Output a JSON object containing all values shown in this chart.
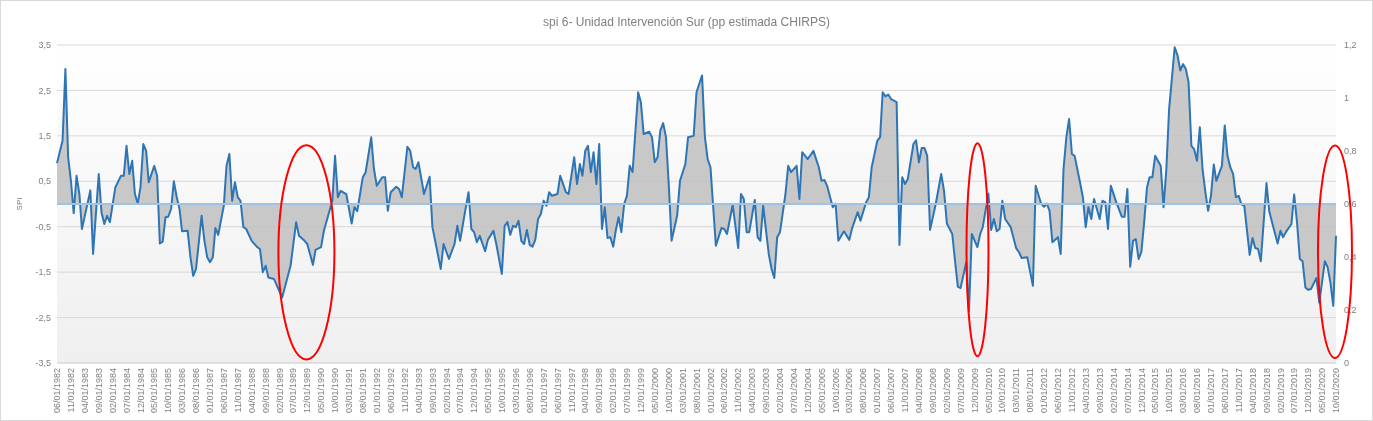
{
  "chart_data": {
    "type": "area",
    "title": "spi 6- Unidad Intervención Sur (pp estimada CHIRPS)",
    "ylabel": "SPI",
    "x": [
      "1982-06",
      "1982-08",
      "1982-09",
      "1982-10",
      "1982-11",
      "1982-12",
      "1983-01",
      "1983-02",
      "1983-03",
      "1983-06",
      "1983-07",
      "1983-09",
      "1983-10",
      "1983-11",
      "1983-12",
      "1984-01",
      "1984-03",
      "1984-05",
      "1984-06",
      "1984-07",
      "1984-08",
      "1984-09",
      "1984-10",
      "1984-11",
      "1984-12",
      "1985-01",
      "1985-02",
      "1985-03",
      "1985-05",
      "1985-06",
      "1985-07",
      "1985-08",
      "1985-09",
      "1985-10",
      "1985-11",
      "1985-12",
      "1986-01",
      "1986-02",
      "1986-03",
      "1986-05",
      "1986-06",
      "1986-07",
      "1986-08",
      "1986-10",
      "1986-11",
      "1986-12",
      "1987-01",
      "1987-02",
      "1987-03",
      "1987-04",
      "1987-06",
      "1987-07",
      "1987-08",
      "1987-09",
      "1987-10",
      "1987-11",
      "1987-12",
      "1988-01",
      "1988-02",
      "1988-04",
      "1988-06",
      "1988-07",
      "1988-08",
      "1988-09",
      "1988-10",
      "1988-12",
      "1989-03",
      "1989-06",
      "1989-08",
      "1989-09",
      "1989-11",
      "1989-12",
      "1990-02",
      "1990-03",
      "1990-05",
      "1990-06",
      "1990-09",
      "1990-10",
      "1990-11",
      "1990-12",
      "1991-02",
      "1991-04",
      "1991-05",
      "1991-06",
      "1991-08",
      "1991-09",
      "1991-11",
      "1991-12",
      "1992-01",
      "1992-03",
      "1992-04",
      "1992-05",
      "1992-06",
      "1992-08",
      "1992-09",
      "1992-10",
      "1992-12",
      "1993-01",
      "1993-02",
      "1993-03",
      "1993-04",
      "1993-06",
      "1993-08",
      "1993-09",
      "1993-10",
      "1993-12",
      "1994-01",
      "1994-03",
      "1994-05",
      "1994-06",
      "1994-07",
      "1994-08",
      "1994-10",
      "1994-11",
      "1994-12",
      "1995-01",
      "1995-02",
      "1995-04",
      "1995-05",
      "1995-07",
      "1995-08",
      "1995-10",
      "1995-11",
      "1995-12",
      "1996-01",
      "1996-02",
      "1996-03",
      "1996-04",
      "1996-05",
      "1996-06",
      "1996-07",
      "1996-08",
      "1996-09",
      "1996-10",
      "1996-11",
      "1996-12",
      "1997-01",
      "1997-02",
      "1997-03",
      "1997-04",
      "1997-06",
      "1997-07",
      "1997-09",
      "1997-10",
      "1997-12",
      "1998-01",
      "1998-02",
      "1998-03",
      "1998-04",
      "1998-05",
      "1998-06",
      "1998-07",
      "1998-08",
      "1998-09",
      "1998-10",
      "1998-11",
      "1998-12",
      "1999-01",
      "1999-02",
      "1999-03",
      "1999-04",
      "1999-05",
      "1999-06",
      "1999-07",
      "1999-08",
      "1999-09",
      "1999-11",
      "1999-12",
      "2000-01",
      "2000-03",
      "2000-04",
      "2000-05",
      "2000-06",
      "2000-07",
      "2000-08",
      "2000-09",
      "2000-10",
      "2000-11",
      "2001-01",
      "2001-02",
      "2001-04",
      "2001-05",
      "2001-07",
      "2001-08",
      "2001-10",
      "2001-11",
      "2001-12",
      "2002-01",
      "2002-03",
      "2002-05",
      "2002-06",
      "2002-07",
      "2002-09",
      "2002-11",
      "2002-12",
      "2003-01",
      "2003-02",
      "2003-03",
      "2003-05",
      "2003-06",
      "2003-07",
      "2003-08",
      "2003-10",
      "2003-11",
      "2003-12",
      "2004-01",
      "2004-02",
      "2004-04",
      "2004-05",
      "2004-06",
      "2004-08",
      "2004-09",
      "2004-10",
      "2004-12",
      "2005-02",
      "2005-04",
      "2005-05",
      "2005-06",
      "2005-07",
      "2005-09",
      "2005-10",
      "2005-11",
      "2006-01",
      "2006-03",
      "2006-04",
      "2006-06",
      "2006-07",
      "2006-09",
      "2006-10",
      "2006-11",
      "2007-01",
      "2007-02",
      "2007-03",
      "2007-04",
      "2007-05",
      "2007-06",
      "2007-08",
      "2007-09",
      "2007-10",
      "2007-11",
      "2007-12",
      "2008-02",
      "2008-03",
      "2008-04",
      "2008-05",
      "2008-06",
      "2008-07",
      "2008-08",
      "2008-10",
      "2008-12",
      "2009-01",
      "2009-02",
      "2009-04",
      "2009-05",
      "2009-06",
      "2009-07",
      "2009-09",
      "2009-10",
      "2009-11",
      "2010-01",
      "2010-02",
      "2010-03",
      "2010-05",
      "2010-06",
      "2010-07",
      "2010-08",
      "2010-09",
      "2010-10",
      "2010-11",
      "2011-01",
      "2011-03",
      "2011-04",
      "2011-05",
      "2011-07",
      "2011-09",
      "2011-10",
      "2011-12",
      "2012-01",
      "2012-02",
      "2012-03",
      "2012-04",
      "2012-06",
      "2012-07",
      "2012-08",
      "2012-09",
      "2012-10",
      "2012-11",
      "2012-12",
      "2013-02",
      "2013-03",
      "2013-04",
      "2013-05",
      "2013-06",
      "2013-07",
      "2013-09",
      "2013-10",
      "2013-11",
      "2013-12",
      "2014-01",
      "2014-03",
      "2014-05",
      "2014-06",
      "2014-07",
      "2014-08",
      "2014-09",
      "2014-10",
      "2014-11",
      "2014-12",
      "2015-01",
      "2015-02",
      "2015-03",
      "2015-04",
      "2015-05",
      "2015-07",
      "2015-08",
      "2015-09",
      "2015-10",
      "2015-12",
      "2016-01",
      "2016-02",
      "2016-03",
      "2016-04",
      "2016-05",
      "2016-06",
      "2016-07",
      "2016-08",
      "2016-09",
      "2016-10",
      "2016-11",
      "2016-12",
      "2017-01",
      "2017-02",
      "2017-03",
      "2017-05",
      "2017-06",
      "2017-07",
      "2017-08",
      "2017-09",
      "2017-10",
      "2017-11",
      "2017-12",
      "2018-01",
      "2018-03",
      "2018-04",
      "2018-05",
      "2018-06",
      "2018-07",
      "2018-09",
      "2018-10",
      "2018-11",
      "2019-01",
      "2019-02",
      "2019-03",
      "2019-04",
      "2019-06",
      "2019-07",
      "2019-08",
      "2019-09",
      "2019-10",
      "2019-11",
      "2019-12",
      "2020-01",
      "2020-03",
      "2020-04",
      "2020-06",
      "2020-07",
      "2020-08",
      "2020-09",
      "2020-10"
    ],
    "series": [
      {
        "color": "#2e75b6",
        "values": [
          0.9,
          1.4,
          2.97,
          1.03,
          0.5,
          -0.2,
          0.62,
          0.22,
          -0.55,
          0.3,
          -1.1,
          0.66,
          -0.18,
          -0.44,
          -0.26,
          -0.4,
          0.37,
          0.62,
          0.62,
          1.28,
          0.66,
          0.95,
          0.22,
          0.01,
          0.37,
          1.32,
          1.17,
          0.48,
          0.84,
          0.62,
          -0.87,
          -0.83,
          -0.29,
          -0.28,
          -0.11,
          0.5,
          0.16,
          -0.11,
          -0.6,
          -0.59,
          -1.17,
          -1.58,
          -1.43,
          -0.26,
          -0.81,
          -1.17,
          -1.28,
          -1.17,
          -0.53,
          -0.68,
          -0.04,
          0.84,
          1.1,
          0.07,
          0.48,
          0.15,
          0.07,
          -0.51,
          -0.55,
          -0.81,
          -0.95,
          -0.99,
          -1.5,
          -1.36,
          -1.62,
          -1.65,
          -2.06,
          -1.36,
          -0.4,
          -0.7,
          -0.81,
          -0.88,
          -1.34,
          -1.01,
          -0.95,
          -0.59,
          0.07,
          1.06,
          0.15,
          0.29,
          0.22,
          -0.43,
          -0.07,
          -0.16,
          0.59,
          0.7,
          1.47,
          0.77,
          0.4,
          0.59,
          0.59,
          -0.15,
          0.26,
          0.38,
          0.33,
          0.15,
          1.26,
          1.17,
          0.81,
          0.77,
          0.92,
          0.22,
          0.6,
          -0.51,
          -0.81,
          -1.43,
          -0.88,
          -1.21,
          -0.88,
          -0.48,
          -0.81,
          -0.44,
          0.26,
          -0.55,
          -0.62,
          -0.84,
          -0.7,
          -1.04,
          -0.79,
          -0.59,
          -0.88,
          -1.54,
          -0.48,
          -0.4,
          -0.68,
          -0.48,
          -0.51,
          -0.37,
          -0.81,
          -0.88,
          -0.57,
          -0.9,
          -0.94,
          -0.79,
          -0.33,
          -0.22,
          0.07,
          -0.04,
          0.26,
          0.18,
          0.22,
          0.62,
          0.26,
          0.22,
          1.03,
          0.44,
          0.88,
          0.62,
          1.17,
          1.28,
          0.7,
          1.14,
          0.44,
          1.32,
          -0.55,
          -0.07,
          -0.75,
          -0.73,
          -0.94,
          -0.59,
          -0.29,
          -0.62,
          0,
          0.18,
          0.84,
          0.7,
          2.46,
          2.24,
          1.54,
          1.59,
          1.47,
          0.92,
          1.03,
          1.62,
          1.78,
          1.47,
          0.44,
          -0.81,
          -0.26,
          0.51,
          0.88,
          1.47,
          1.5,
          2.46,
          2.83,
          1.47,
          0.99,
          0.81,
          -0.92,
          -0.53,
          -0.55,
          -0.66,
          -0.02,
          -0.97,
          0.22,
          0.11,
          -0.62,
          -0.62,
          0.09,
          -0.73,
          -0.81,
          -0.04,
          -1.1,
          -1.43,
          -1.63,
          -0.73,
          -0.62,
          0.22,
          0.84,
          0.7,
          0.84,
          0.11,
          1.14,
          0.99,
          1.17,
          0.81,
          0.51,
          0.53,
          0.4,
          -0.07,
          0.01,
          -0.81,
          -0.6,
          -0.79,
          -0.53,
          -0.18,
          -0.37,
          0.04,
          0.15,
          0.81,
          1.39,
          1.47,
          2.46,
          2.37,
          2.41,
          2.31,
          2.24,
          -0.9,
          0.59,
          0.44,
          0.55,
          1.32,
          1.4,
          0.92,
          1.23,
          1.23,
          1.06,
          -0.57,
          -0.01,
          0.66,
          0.29,
          -0.43,
          -0.66,
          -1.25,
          -1.82,
          -1.85,
          -1.28,
          -2.36,
          -0.66,
          -0.95,
          -0.66,
          -0.51,
          0.23,
          -0.57,
          -0.33,
          -0.6,
          -0.55,
          0.07,
          -0.33,
          -0.51,
          -0.97,
          -1.06,
          -1.19,
          -1.17,
          -1.8,
          0.4,
          0,
          -0.06,
          0.01,
          -0.15,
          -0.84,
          -0.73,
          -1.1,
          0.77,
          1.47,
          1.87,
          1.1,
          1.06,
          0.44,
          0.15,
          -0.51,
          -0.07,
          -0.33,
          0.11,
          -0.33,
          0.07,
          0.04,
          -0.55,
          0.4,
          0.04,
          -0.28,
          -0.28,
          0.33,
          -1.38,
          -0.81,
          -0.77,
          -1.21,
          -1.06,
          -0.4,
          0.37,
          0.59,
          0.59,
          1.06,
          0.84,
          -0.07,
          0.77,
          2.09,
          3.45,
          3.27,
          2.94,
          3.08,
          2.97,
          2.68,
          1.28,
          1.21,
          0.95,
          1.69,
          0.77,
          0.26,
          -0.15,
          0.18,
          0.87,
          0.51,
          0.84,
          1.73,
          1.06,
          0.81,
          0.66,
          0.15,
          0.18,
          -0.01,
          -0.04,
          -1.12,
          -0.75,
          -0.97,
          -0.99,
          -1.26,
          0.46,
          -0.16,
          -0.4,
          -0.87,
          -0.59,
          -0.73,
          -0.62,
          -0.44,
          0.21,
          -0.4,
          -1.21,
          -1.26,
          -1.84,
          -1.89,
          -1.87,
          -1.63,
          -2.17,
          -1.26,
          -1.39,
          -1.73,
          -2.24,
          -0.7
        ]
      }
    ],
    "xlim": [
      "1982-06",
      "2020-10"
    ],
    "xticks": [
      {
        "value": "1982-06",
        "label": "06/01/1982"
      },
      {
        "value": "1982-11",
        "label": "11/01/1982"
      },
      {
        "value": "1983-04",
        "label": "04/01/1983"
      },
      {
        "value": "1983-09",
        "label": "09/01/1983"
      },
      {
        "value": "1984-02",
        "label": "02/01/1984"
      },
      {
        "value": "1984-07",
        "label": "07/01/1984"
      },
      {
        "value": "1984-12",
        "label": "12/01/1984"
      },
      {
        "value": "1985-05",
        "label": "05/01/1985"
      },
      {
        "value": "1985-10",
        "label": "10/01/1985"
      },
      {
        "value": "1986-03",
        "label": "03/01/1986"
      },
      {
        "value": "1986-08",
        "label": "08/01/1986"
      },
      {
        "value": "1987-01",
        "label": "01/01/1987"
      },
      {
        "value": "1987-06",
        "label": "06/01/1987"
      },
      {
        "value": "1987-11",
        "label": "11/01/1987"
      },
      {
        "value": "1988-04",
        "label": "04/01/1988"
      },
      {
        "value": "1988-09",
        "label": "09/01/1988"
      },
      {
        "value": "1989-02",
        "label": "02/01/1989"
      },
      {
        "value": "1989-07",
        "label": "07/01/1989"
      },
      {
        "value": "1989-12",
        "label": "12/01/1989"
      },
      {
        "value": "1990-05",
        "label": "05/01/1990"
      },
      {
        "value": "1990-10",
        "label": "10/01/1990"
      },
      {
        "value": "1991-03",
        "label": "03/01/1991"
      },
      {
        "value": "1991-08",
        "label": "08/01/1991"
      },
      {
        "value": "1992-01",
        "label": "01/01/1992"
      },
      {
        "value": "1992-06",
        "label": "06/01/1992"
      },
      {
        "value": "1992-11",
        "label": "11/01/1992"
      },
      {
        "value": "1993-04",
        "label": "04/01/1993"
      },
      {
        "value": "1993-09",
        "label": "09/01/1993"
      },
      {
        "value": "1994-02",
        "label": "02/01/1994"
      },
      {
        "value": "1994-07",
        "label": "07/01/1994"
      },
      {
        "value": "1994-12",
        "label": "12/01/1994"
      },
      {
        "value": "1995-05",
        "label": "05/01/1995"
      },
      {
        "value": "1995-10",
        "label": "10/01/1995"
      },
      {
        "value": "1996-03",
        "label": "03/01/1996"
      },
      {
        "value": "1996-08",
        "label": "08/01/1996"
      },
      {
        "value": "1997-01",
        "label": "01/01/1997"
      },
      {
        "value": "1997-06",
        "label": "06/01/1997"
      },
      {
        "value": "1997-11",
        "label": "11/01/1997"
      },
      {
        "value": "1998-04",
        "label": "04/01/1998"
      },
      {
        "value": "1998-09",
        "label": "09/01/1998"
      },
      {
        "value": "1999-02",
        "label": "02/01/1999"
      },
      {
        "value": "1999-07",
        "label": "07/01/1999"
      },
      {
        "value": "1999-12",
        "label": "12/01/1999"
      },
      {
        "value": "2000-05",
        "label": "05/01/2000"
      },
      {
        "value": "2000-10",
        "label": "10/01/2000"
      },
      {
        "value": "2001-03",
        "label": "03/01/2001"
      },
      {
        "value": "2001-08",
        "label": "08/01/2001"
      },
      {
        "value": "2002-01",
        "label": "01/01/2002"
      },
      {
        "value": "2002-06",
        "label": "06/01/2002"
      },
      {
        "value": "2002-11",
        "label": "11/01/2002"
      },
      {
        "value": "2003-04",
        "label": "04/01/2003"
      },
      {
        "value": "2003-09",
        "label": "09/01/2003"
      },
      {
        "value": "2004-02",
        "label": "02/01/2004"
      },
      {
        "value": "2004-07",
        "label": "07/01/2004"
      },
      {
        "value": "2004-12",
        "label": "12/01/2004"
      },
      {
        "value": "2005-05",
        "label": "05/01/2005"
      },
      {
        "value": "2005-10",
        "label": "10/01/2005"
      },
      {
        "value": "2006-03",
        "label": "03/01/2006"
      },
      {
        "value": "2006-08",
        "label": "08/01/2006"
      },
      {
        "value": "2007-01",
        "label": "01/01/2007"
      },
      {
        "value": "2007-06",
        "label": "06/01/2007"
      },
      {
        "value": "2007-11",
        "label": "11/01/2007"
      },
      {
        "value": "2008-04",
        "label": "04/01/2008"
      },
      {
        "value": "2008-09",
        "label": "09/01/2008"
      },
      {
        "value": "2009-02",
        "label": "02/01/2009"
      },
      {
        "value": "2009-07",
        "label": "07/01/2009"
      },
      {
        "value": "2009-12",
        "label": "12/01/2009"
      },
      {
        "value": "2010-05",
        "label": "05/01/2010"
      },
      {
        "value": "2010-10",
        "label": "10/01/2010"
      },
      {
        "value": "2011-03",
        "label": "03/01/2011"
      },
      {
        "value": "2011-08",
        "label": "08/01/2011"
      },
      {
        "value": "2012-01",
        "label": "01/01/2012"
      },
      {
        "value": "2012-06",
        "label": "06/01/2012"
      },
      {
        "value": "2012-11",
        "label": "11/01/2012"
      },
      {
        "value": "2013-04",
        "label": "04/01/2013"
      },
      {
        "value": "2013-09",
        "label": "09/01/2013"
      },
      {
        "value": "2014-02",
        "label": "02/01/2014"
      },
      {
        "value": "2014-07",
        "label": "07/01/2014"
      },
      {
        "value": "2014-12",
        "label": "12/01/2014"
      },
      {
        "value": "2015-05",
        "label": "05/01/2015"
      },
      {
        "value": "2015-10",
        "label": "10/01/2015"
      },
      {
        "value": "2016-03",
        "label": "03/01/2016"
      },
      {
        "value": "2016-08",
        "label": "08/01/2016"
      },
      {
        "value": "2017-01",
        "label": "01/01/2017"
      },
      {
        "value": "2017-06",
        "label": "06/01/2017"
      },
      {
        "value": "2017-11",
        "label": "11/01/2017"
      },
      {
        "value": "2018-04",
        "label": "04/01/2018"
      },
      {
        "value": "2018-09",
        "label": "09/01/2018"
      },
      {
        "value": "2019-02",
        "label": "02/01/2019"
      },
      {
        "value": "2019-07",
        "label": "07/01/2019"
      },
      {
        "value": "2019-12",
        "label": "12/01/2019"
      },
      {
        "value": "2020-05",
        "label": "05/01/2020"
      },
      {
        "value": "2020-10",
        "label": "10/01/2020"
      }
    ],
    "ylim": [
      -3.5,
      3.5
    ],
    "yticks": [
      {
        "value": -3.5,
        "label": "-3,5"
      },
      {
        "value": -2.5,
        "label": "-2,5"
      },
      {
        "value": -1.5,
        "label": "-1,5"
      },
      {
        "value": -0.5,
        "label": "-0,5"
      },
      {
        "value": 0.5,
        "label": "0,5"
      },
      {
        "value": 1.5,
        "label": "1,5"
      },
      {
        "value": 2.5,
        "label": "2,5"
      },
      {
        "value": 3.5,
        "label": "3,5"
      }
    ],
    "y2lim": [
      0,
      1.2
    ],
    "y2ticks": [
      0,
      {
        "value": 0.2,
        "label": "0,2"
      },
      {
        "value": 0.4,
        "label": "0,4"
      },
      {
        "value": 0.6,
        "label": "0,6"
      },
      {
        "value": 0.8,
        "label": "0,8"
      },
      1,
      {
        "value": 1.2,
        "label": "1,2"
      }
    ],
    "grid": "y",
    "ref_lines": [
      {
        "axis": "y",
        "value": 0,
        "color": "#9dc3e6"
      }
    ]
  }
}
